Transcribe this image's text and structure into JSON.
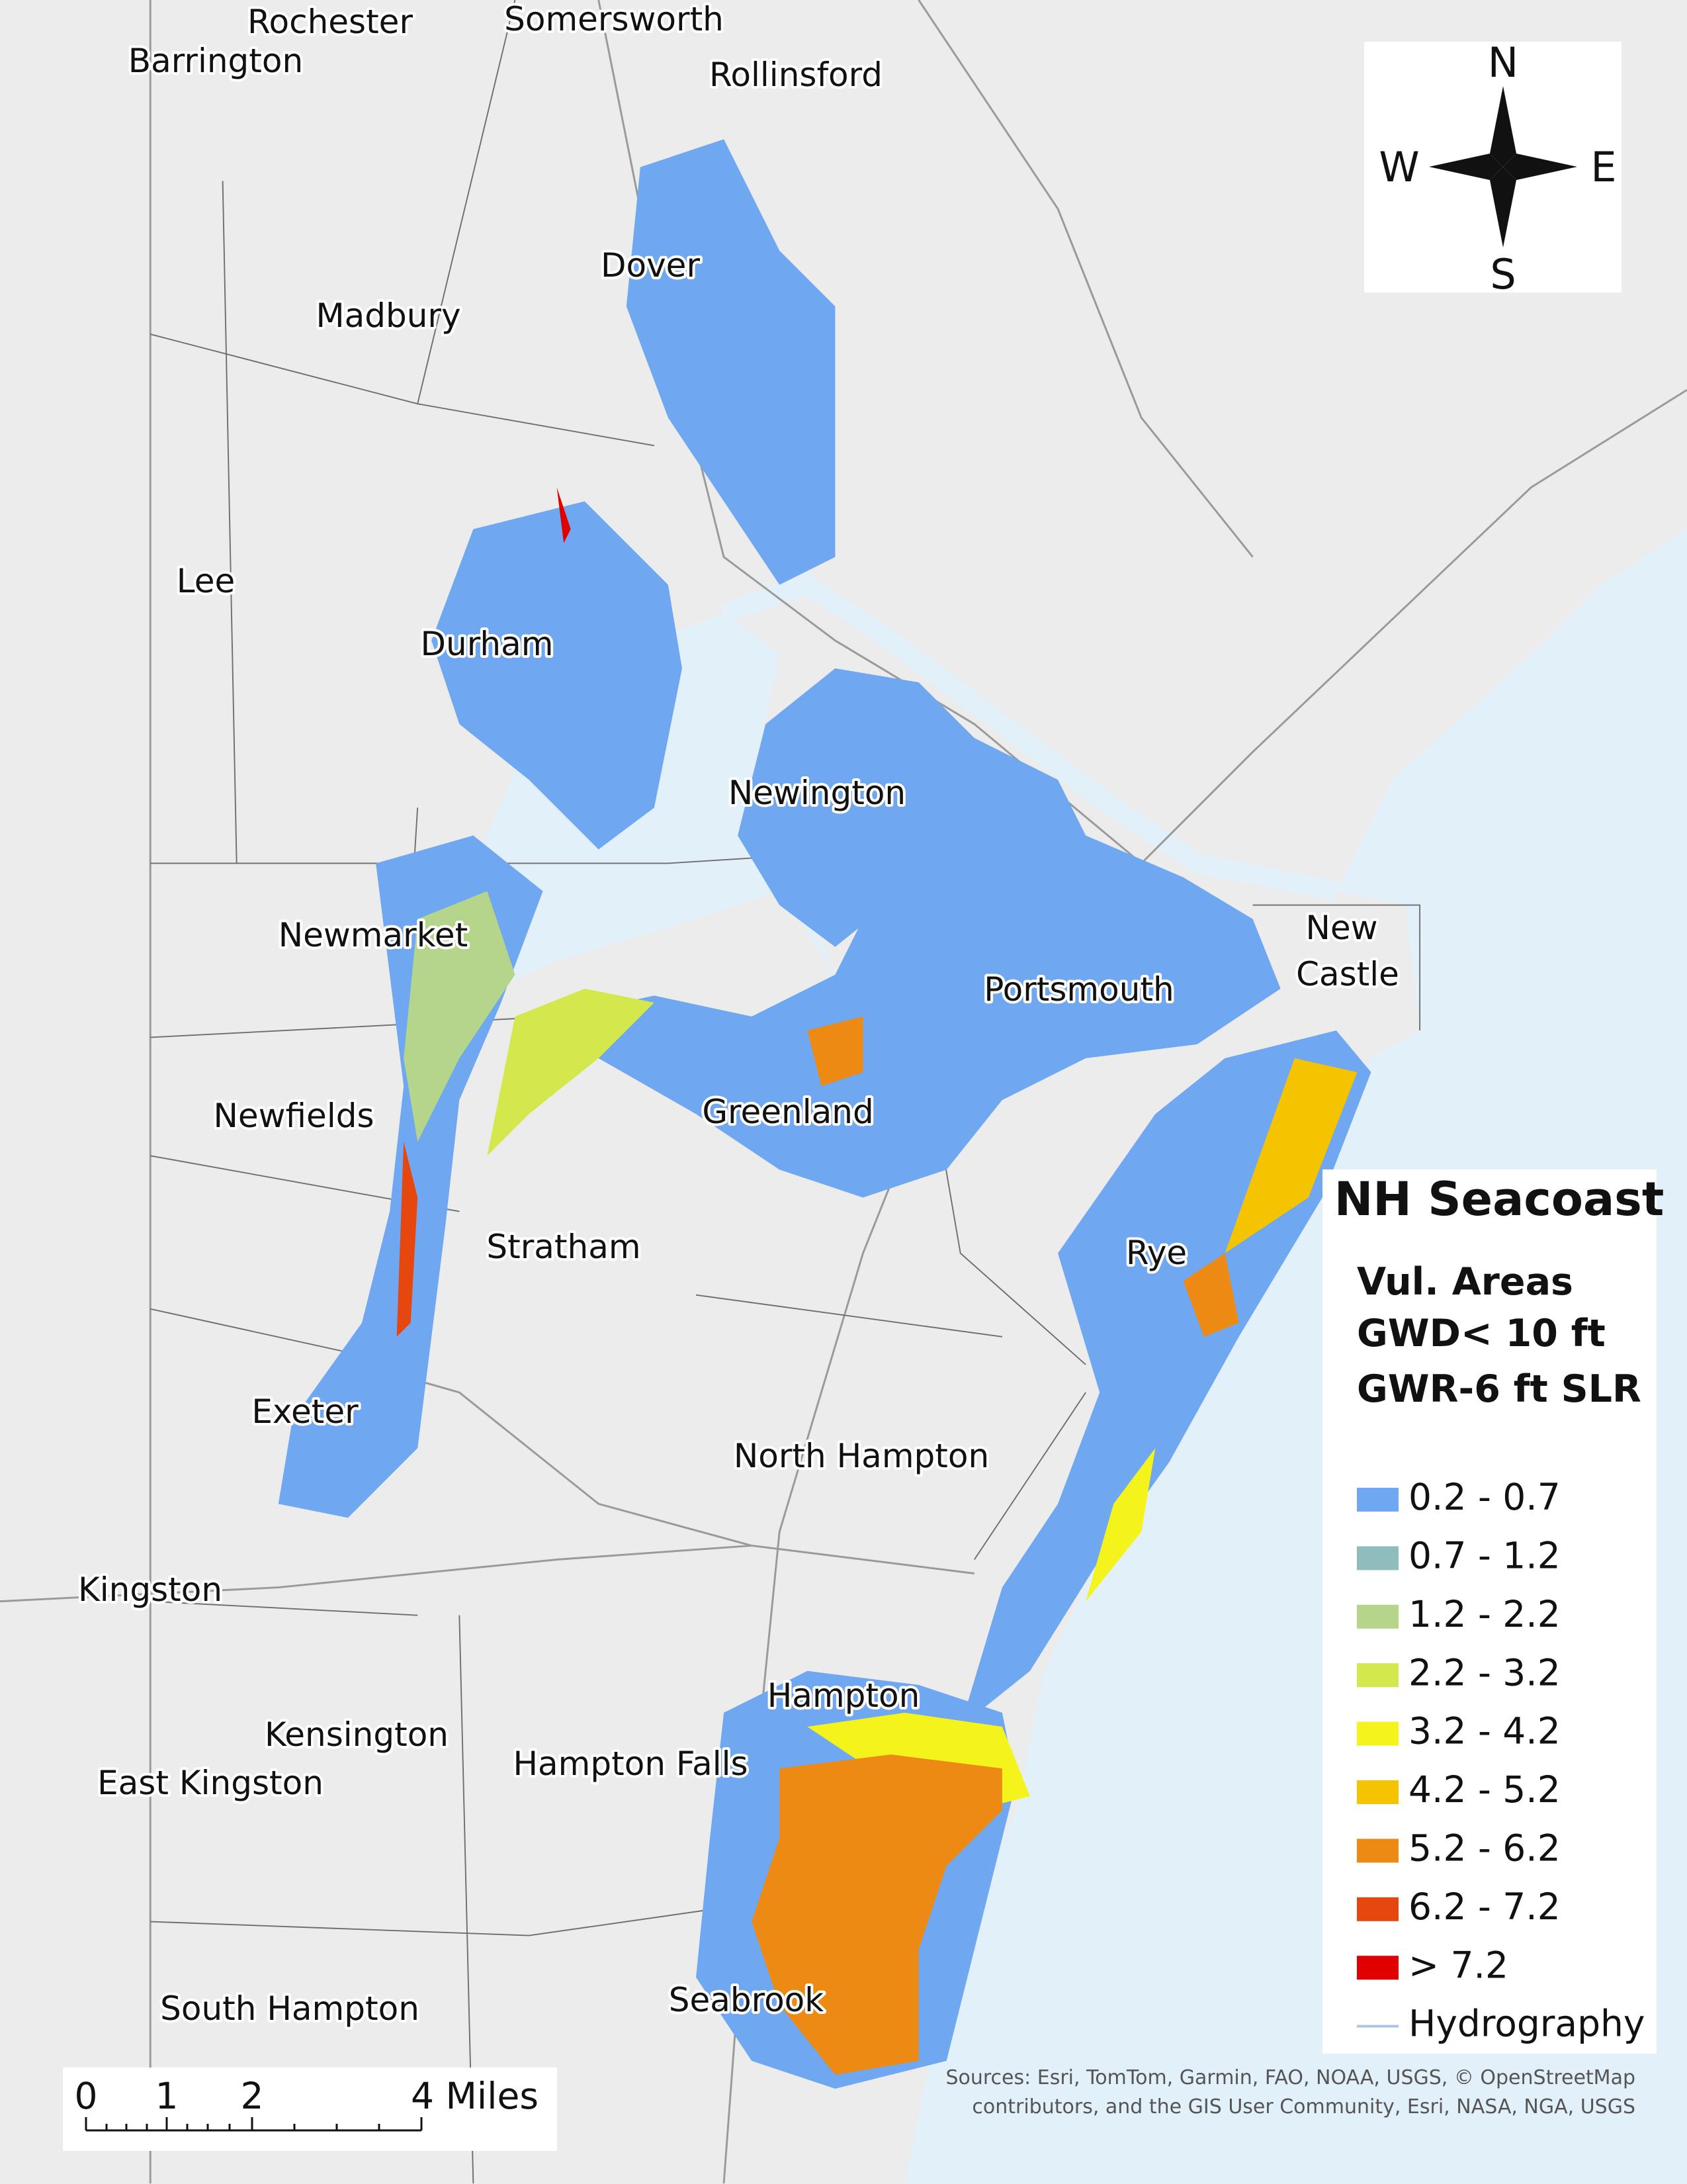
{
  "map": {
    "title": "NH Seacoast",
    "subtitle": [
      "Vul. Areas",
      "GWD< 10 ft",
      "GWR-6 ft SLR"
    ],
    "legend": [
      {
        "label": "0.2 - 0.7",
        "color": "#6fa8f0"
      },
      {
        "label": "0.7 - 1.2",
        "color": "#8fbdbd"
      },
      {
        "label": "1.2 - 2.2",
        "color": "#b5d68a"
      },
      {
        "label": "2.2 - 3.2",
        "color": "#d4e84e"
      },
      {
        "label": "3.2 - 4.2",
        "color": "#f4f41c"
      },
      {
        "label": "4.2 - 5.2",
        "color": "#f5c400"
      },
      {
        "label": "5.2 - 6.2",
        "color": "#ec8a14"
      },
      {
        "label": "6.2 - 7.2",
        "color": "#e6470f"
      },
      {
        "label": "> 7.2",
        "color": "#e00000"
      }
    ],
    "hydrography": {
      "label": "Hydrography",
      "color": "#a9c6e6"
    },
    "places": [
      "Rochester",
      "Somersworth",
      "Barrington",
      "Rollinsford",
      "Dover",
      "Madbury",
      "Lee",
      "Durham",
      "Newington",
      "Newmarket",
      "New",
      "Castle",
      "Portsmouth",
      "Newfields",
      "Greenland",
      "Stratham",
      "Rye",
      "Exeter",
      "North Hampton",
      "Kingston",
      "Hampton",
      "Kensington",
      "Hampton Falls",
      "East Kingston",
      "Seabrook",
      "South Hampton"
    ],
    "compass": {
      "north": "N",
      "east": "E",
      "south": "S",
      "west": "W"
    },
    "scale_bar": [
      "0",
      "1",
      "2",
      "4 Miles"
    ],
    "sources": [
      "Sources: Esri, TomTom, Garmin, FAO, NOAA, USGS, © OpenStreetMap",
      "contributors, and the GIS User Community, Esri, NASA, NGA, USGS"
    ]
  }
}
